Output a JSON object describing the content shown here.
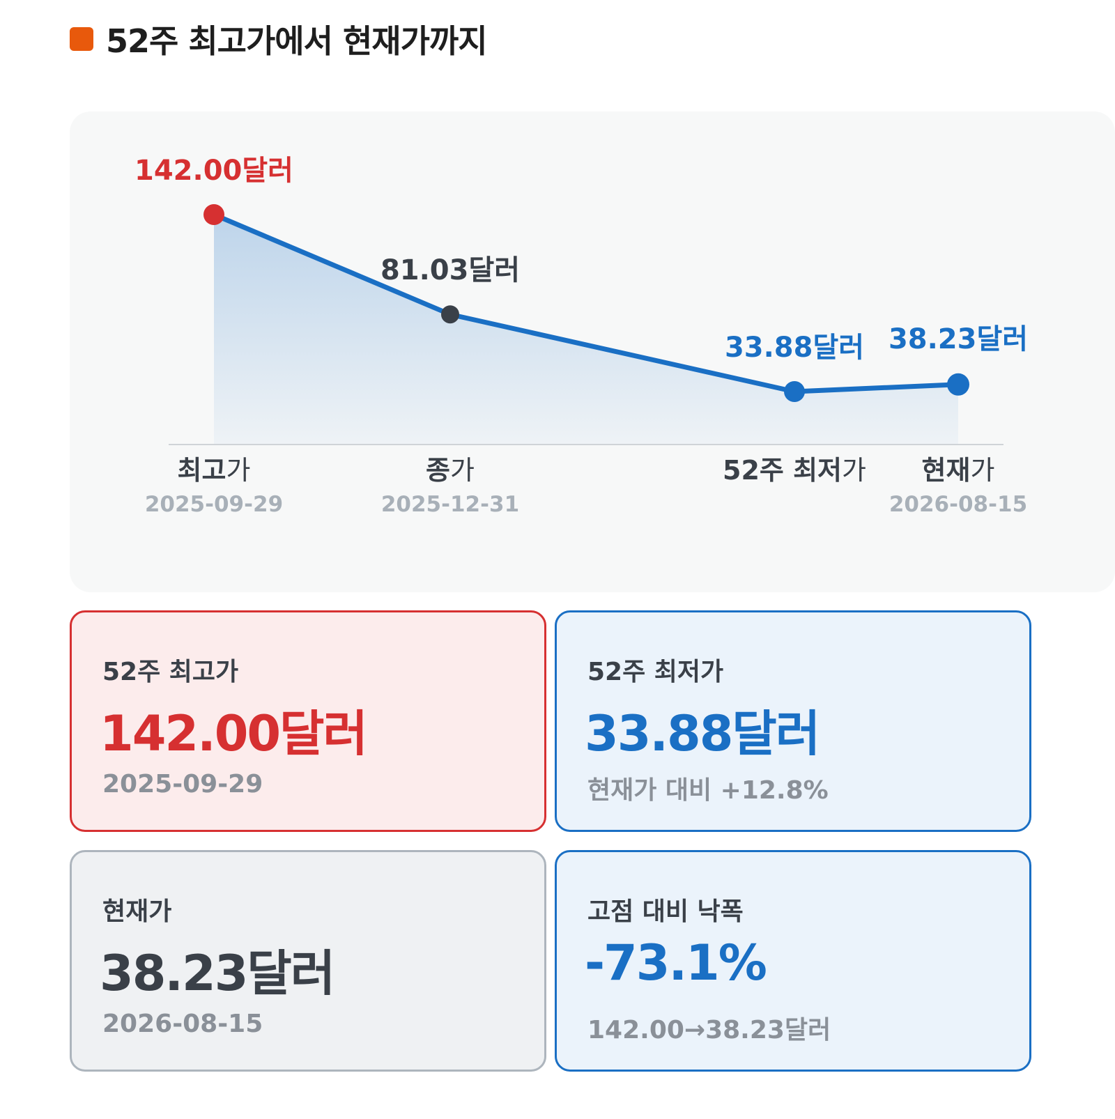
{
  "title": "52주 최고가에서 현재가까지",
  "colors": {
    "title_mark": "#e8590c",
    "high": "#d63031",
    "low": "#1a6fc4",
    "neutral": "#3a4048",
    "muted": "#a8b0b8",
    "panel_bg": "#f7f8f8"
  },
  "chart_data": {
    "type": "line",
    "title": "",
    "xlabel": "",
    "ylabel": "",
    "ylim": [
      0,
      160
    ],
    "grid": false,
    "fill_area": true,
    "points": [
      {
        "label_bold": "최고",
        "label_rest": "가",
        "date": "2025-09-29",
        "value": 142.0,
        "value_label": "142.00달러",
        "color": "#d63031"
      },
      {
        "label_bold": "종",
        "label_rest": "가",
        "date": "2025-12-31",
        "value": 81.03,
        "value_label": "81.03달러",
        "color": "#3a4048"
      },
      {
        "label_bold": "52주 최저",
        "label_rest": "가",
        "date": "",
        "value": 33.88,
        "value_label": "33.88달러",
        "color": "#1a6fc4"
      },
      {
        "label_bold": "현재",
        "label_rest": "가",
        "date": "2026-08-15",
        "value": 38.23,
        "value_label": "38.23달러",
        "color": "#1a6fc4"
      }
    ]
  },
  "cards": {
    "high": {
      "label": "52주 최고가",
      "value": "142.00달러",
      "sub": "2025-09-29"
    },
    "low": {
      "label": "52주 최저가",
      "value": "33.88달러",
      "sub": "현재가 대비 +12.8%"
    },
    "current": {
      "label": "현재가",
      "value": "38.23달러",
      "sub": "2026-08-15"
    },
    "drawdown": {
      "label": "고점 대비 낙폭",
      "value": "-73.1%",
      "sub": "142.00→38.23달러"
    }
  }
}
